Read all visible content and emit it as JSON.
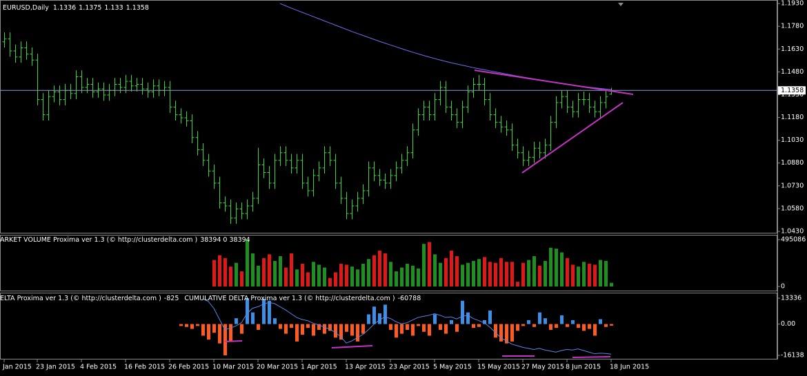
{
  "chart_data": [
    {
      "type": "ohlc",
      "title": "EURUSD,Daily",
      "color": "#33dd33",
      "categories": [
        "Jan 2015",
        null,
        null,
        null,
        null,
        null,
        "23 Jan 2015",
        null,
        null,
        null,
        null,
        null,
        null,
        null,
        "4 Feb 2015",
        null,
        null,
        null,
        null,
        null,
        null,
        null,
        "16 Feb 2015",
        null,
        null,
        null,
        null,
        null,
        null,
        null,
        "26 Feb 2015",
        null,
        null,
        null,
        null,
        null,
        null,
        null,
        "10 Mar 2015",
        null,
        null,
        null,
        null,
        null,
        null,
        null,
        "20 Mar 2015",
        null,
        null,
        null,
        null,
        null,
        null,
        null,
        "1 Apr 2015",
        null,
        null,
        null,
        null,
        null,
        null,
        null,
        "13 Apr 2015",
        null,
        null,
        null,
        null,
        null,
        null,
        null,
        "23 Apr 2015",
        null,
        null,
        null,
        null,
        null,
        null,
        null,
        "5 May 2015",
        null,
        null,
        null,
        null,
        null,
        null,
        null,
        "15 May 2015",
        null,
        null,
        null,
        null,
        null,
        null,
        null,
        "27 May 2015",
        null,
        null,
        null,
        null,
        null,
        null,
        null,
        "8 Jun 2015",
        null,
        null,
        null,
        null,
        null,
        null,
        null,
        "18 Jun 2015"
      ],
      "open": [
        1.168,
        1.17,
        1.162,
        1.158,
        1.164,
        1.16,
        1.156,
        1.13,
        1.12,
        1.132,
        1.135,
        1.13,
        1.136,
        1.134,
        1.145,
        1.138,
        1.14,
        1.135,
        1.137,
        1.133,
        1.136,
        1.14,
        1.138,
        1.142,
        1.139,
        1.14,
        1.137,
        1.135,
        1.139,
        1.136,
        1.138,
        1.125,
        1.12,
        1.118,
        1.116,
        1.105,
        1.097,
        1.09,
        1.083,
        1.075,
        1.062,
        1.06,
        1.052,
        1.058,
        1.055,
        1.06,
        1.065,
        1.087,
        1.082,
        1.075,
        1.09,
        1.095,
        1.09,
        1.085,
        1.09,
        1.075,
        1.07,
        1.08,
        1.085,
        1.095,
        1.09,
        1.075,
        1.065,
        1.055,
        1.06,
        1.065,
        1.07,
        1.085,
        1.08,
        1.077,
        1.075,
        1.08,
        1.085,
        1.09,
        1.095,
        1.11,
        1.12,
        1.125,
        1.12,
        1.13,
        1.138,
        1.125,
        1.12,
        1.115,
        1.125,
        1.135,
        1.14,
        1.14,
        1.13,
        1.12,
        1.115,
        1.112,
        1.11,
        1.1,
        1.095,
        1.09,
        1.092,
        1.098,
        1.095,
        1.1,
        1.115,
        1.128,
        1.132,
        1.125,
        1.122,
        1.13,
        1.13,
        1.125,
        1.122,
        1.128,
        1.1336
      ],
      "high": [
        1.174,
        1.174,
        1.166,
        1.168,
        1.168,
        1.164,
        1.16,
        1.134,
        1.136,
        1.139,
        1.139,
        1.14,
        1.14,
        1.149,
        1.149,
        1.144,
        1.144,
        1.141,
        1.141,
        1.14,
        1.144,
        1.144,
        1.146,
        1.146,
        1.144,
        1.144,
        1.141,
        1.143,
        1.143,
        1.142,
        1.142,
        1.129,
        1.124,
        1.122,
        1.12,
        1.109,
        1.101,
        1.094,
        1.087,
        1.079,
        1.066,
        1.064,
        1.062,
        1.062,
        1.064,
        1.069,
        1.098,
        1.091,
        1.086,
        1.094,
        1.099,
        1.099,
        1.094,
        1.094,
        1.094,
        1.079,
        1.084,
        1.089,
        1.099,
        1.099,
        1.094,
        1.079,
        1.069,
        1.064,
        1.069,
        1.074,
        1.089,
        1.089,
        1.084,
        1.081,
        1.084,
        1.089,
        1.094,
        1.099,
        1.114,
        1.124,
        1.129,
        1.129,
        1.134,
        1.142,
        1.142,
        1.129,
        1.124,
        1.129,
        1.139,
        1.144,
        1.146,
        1.144,
        1.134,
        1.124,
        1.119,
        1.116,
        1.114,
        1.104,
        1.099,
        1.096,
        1.102,
        1.102,
        1.104,
        1.119,
        1.132,
        1.136,
        1.136,
        1.129,
        1.134,
        1.135,
        1.134,
        1.129,
        1.132,
        1.136,
        1.1375
      ],
      "low": [
        1.164,
        1.158,
        1.154,
        1.154,
        1.156,
        1.152,
        1.126,
        1.116,
        1.116,
        1.128,
        1.126,
        1.126,
        1.13,
        1.13,
        1.134,
        1.134,
        1.131,
        1.131,
        1.129,
        1.129,
        1.132,
        1.134,
        1.134,
        1.135,
        1.135,
        1.133,
        1.131,
        1.131,
        1.132,
        1.132,
        1.121,
        1.116,
        1.114,
        1.112,
        1.101,
        1.093,
        1.086,
        1.079,
        1.071,
        1.058,
        1.056,
        1.048,
        1.048,
        1.051,
        1.051,
        1.056,
        1.061,
        1.078,
        1.071,
        1.071,
        1.086,
        1.086,
        1.081,
        1.081,
        1.071,
        1.066,
        1.066,
        1.076,
        1.081,
        1.086,
        1.071,
        1.061,
        1.051,
        1.051,
        1.056,
        1.061,
        1.066,
        1.076,
        1.073,
        1.071,
        1.071,
        1.076,
        1.081,
        1.086,
        1.091,
        1.106,
        1.116,
        1.116,
        1.116,
        1.126,
        1.121,
        1.116,
        1.111,
        1.111,
        1.121,
        1.131,
        1.136,
        1.126,
        1.116,
        1.111,
        1.108,
        1.106,
        1.096,
        1.091,
        1.086,
        1.086,
        1.088,
        1.091,
        1.091,
        1.096,
        1.111,
        1.124,
        1.121,
        1.118,
        1.118,
        1.126,
        1.121,
        1.118,
        1.118,
        1.124,
        1.133
      ],
      "close": [
        1.17,
        1.162,
        1.158,
        1.164,
        1.16,
        1.156,
        1.13,
        1.12,
        1.132,
        1.135,
        1.13,
        1.136,
        1.134,
        1.145,
        1.138,
        1.14,
        1.135,
        1.137,
        1.133,
        1.136,
        1.14,
        1.138,
        1.142,
        1.139,
        1.14,
        1.137,
        1.135,
        1.139,
        1.136,
        1.138,
        1.125,
        1.12,
        1.118,
        1.116,
        1.105,
        1.097,
        1.09,
        1.083,
        1.075,
        1.062,
        1.06,
        1.052,
        1.058,
        1.055,
        1.06,
        1.065,
        1.087,
        1.082,
        1.075,
        1.09,
        1.095,
        1.09,
        1.085,
        1.09,
        1.075,
        1.07,
        1.08,
        1.085,
        1.095,
        1.09,
        1.075,
        1.065,
        1.055,
        1.06,
        1.065,
        1.07,
        1.085,
        1.08,
        1.077,
        1.075,
        1.08,
        1.085,
        1.09,
        1.095,
        1.11,
        1.12,
        1.125,
        1.12,
        1.13,
        1.138,
        1.125,
        1.12,
        1.115,
        1.125,
        1.135,
        1.14,
        1.14,
        1.13,
        1.12,
        1.115,
        1.112,
        1.11,
        1.1,
        1.095,
        1.09,
        1.092,
        1.098,
        1.095,
        1.1,
        1.115,
        1.128,
        1.132,
        1.125,
        1.122,
        1.13,
        1.13,
        1.125,
        1.122,
        1.128,
        1.132,
        1.1358
      ],
      "overlays": [
        {
          "color": "#6f6ff0",
          "values": [
            null,
            null,
            null,
            null,
            null,
            null,
            null,
            null,
            null,
            null,
            null,
            null,
            null,
            null,
            null,
            null,
            null,
            null,
            null,
            null,
            null,
            null,
            null,
            null,
            null,
            null,
            null,
            null,
            null,
            null,
            null,
            null,
            null,
            null,
            null,
            null,
            null,
            null,
            null,
            null,
            null,
            null,
            null,
            null,
            null,
            null,
            null,
            null,
            null,
            null,
            1.193,
            1.1915,
            1.19,
            1.1886,
            1.1872,
            1.1858,
            1.1844,
            1.183,
            1.1816,
            1.1802,
            1.1788,
            1.1774,
            1.176,
            1.1746,
            1.1733,
            1.172,
            1.1707,
            1.1694,
            1.1681,
            1.1669,
            1.1657,
            1.1645,
            1.1633,
            1.1621,
            1.161,
            1.1599,
            1.1588,
            1.1578,
            1.1568,
            1.1558,
            1.1549,
            1.154,
            1.1532,
            1.1524,
            1.1516,
            1.1508,
            1.1501,
            1.1494,
            1.1487,
            1.148,
            1.1473,
            1.1466,
            1.1459,
            1.1452,
            1.1446,
            1.144,
            1.1434,
            1.1428,
            1.1422,
            1.1416,
            1.141,
            1.1404,
            1.1399,
            1.1394,
            1.1389,
            1.1384,
            1.1379,
            1.1375,
            1.1371,
            1.1367,
            1.1363
          ]
        }
      ],
      "ylim": [
        1.0421,
        1.1953
      ],
      "yticks": [
        {
          "value": 1.193,
          "label": "1.1930"
        },
        {
          "value": 1.178,
          "label": "1.1780"
        },
        {
          "value": 1.163,
          "label": "1.1630"
        },
        {
          "value": 1.148,
          "label": "1.1480"
        },
        {
          "value": 1.133,
          "label": "1.1330"
        },
        {
          "value": 1.118,
          "label": "1.1180"
        },
        {
          "value": 1.103,
          "label": "1.1030"
        },
        {
          "value": 1.088,
          "label": "1.0880"
        },
        {
          "value": 1.073,
          "label": "1.0730"
        },
        {
          "value": 1.058,
          "label": "1.0580"
        },
        {
          "value": 1.043,
          "label": "1.0430"
        }
      ],
      "last_price_line": true
    },
    {
      "type": "bar",
      "title": "ARKET VOLUME Proxima ver 1.3 (© http://clusterdelta.com )",
      "readout": "38394 0 38394",
      "up_color": "#1f8f1f",
      "down_color": "#e01818",
      "values": [
        null,
        null,
        null,
        null,
        null,
        null,
        null,
        null,
        null,
        null,
        null,
        null,
        null,
        null,
        null,
        null,
        null,
        null,
        null,
        null,
        null,
        null,
        null,
        null,
        null,
        null,
        null,
        null,
        null,
        null,
        null,
        null,
        null,
        null,
        null,
        null,
        null,
        null,
        280000,
        330000,
        300000,
        210000,
        250000,
        160000,
        495086,
        350000,
        220000,
        300000,
        340000,
        270000,
        320000,
        200000,
        350000,
        180000,
        240000,
        150000,
        260000,
        230000,
        200000,
        90000,
        150000,
        240000,
        230000,
        210000,
        180000,
        240000,
        290000,
        330000,
        380000,
        350000,
        260000,
        160000,
        200000,
        240000,
        220000,
        190000,
        450000,
        470000,
        340000,
        250000,
        300000,
        380000,
        320000,
        230000,
        250000,
        270000,
        290000,
        310000,
        260000,
        250000,
        300000,
        260000,
        260000,
        50000,
        250000,
        280000,
        320000,
        220000,
        270000,
        410000,
        400000,
        360000,
        300000,
        230000,
        210000,
        260000,
        240000,
        230000,
        280000,
        270000,
        38394
      ],
      "ylim": [
        0,
        495086
      ],
      "yticks": [
        495086,
        0
      ]
    },
    {
      "type": "bar",
      "title": "ELTA Proxima ver 1.3 (© http://clusterdelta.com )",
      "up_color": "#3d8fe6",
      "down_color": "#ff5a1f",
      "values": [
        null,
        null,
        null,
        null,
        null,
        null,
        null,
        null,
        null,
        null,
        null,
        null,
        null,
        null,
        null,
        null,
        null,
        null,
        null,
        null,
        null,
        null,
        null,
        null,
        null,
        null,
        null,
        null,
        null,
        null,
        null,
        null,
        -1000,
        -1500,
        -2500,
        -1000,
        -6000,
        -8000,
        -4500,
        -10000,
        -16138,
        -9000,
        3000,
        -5000,
        13336,
        6000,
        -3000,
        13000,
        12000,
        3000,
        -2500,
        -5000,
        -2000,
        -9000,
        -5500,
        -2000,
        -6000,
        -3000,
        -5000,
        -3500,
        -7000,
        -8000,
        -4000,
        -6000,
        -9000,
        -5000,
        5000,
        9000,
        5500,
        10000,
        -3000,
        -7000,
        -5000,
        -3000,
        -6000,
        -1000,
        -4000,
        -6000,
        5000,
        -3000,
        -5000,
        2000,
        -4000,
        12000,
        6000,
        -2000,
        -1500,
        2000,
        7000,
        -7000,
        -9000,
        -10000,
        -9000,
        -3500,
        -1000,
        2000,
        -1500,
        6000,
        3000,
        -3000,
        -2000,
        4500,
        -1500,
        2000,
        -2000,
        -3500,
        -2500,
        -6000,
        2500,
        -1500,
        -825
      ],
      "ylim": [
        -16138,
        13336
      ],
      "yticks": [
        13336,
        {
          "value": 0,
          "label": "0.00"
        },
        -16138
      ],
      "y2lim": [
        -63000,
        44000
      ],
      "series": [
        {
          "name": "CUMULATIVE DELTA Proxima ver 1.3 (© http://clusterdelta.com )",
          "color": "#5a86e8",
          "axis": "y2",
          "values": [
            null,
            null,
            null,
            null,
            null,
            null,
            null,
            null,
            null,
            null,
            null,
            null,
            null,
            null,
            null,
            null,
            null,
            null,
            null,
            null,
            null,
            null,
            null,
            null,
            null,
            null,
            null,
            null,
            null,
            null,
            null,
            null,
            null,
            null,
            null,
            null,
            43000,
            38000,
            25000,
            5000,
            -15000,
            -12000,
            -8000,
            -2000,
            15000,
            25000,
            28000,
            33000,
            36000,
            34000,
            28000,
            22000,
            15000,
            8000,
            4000,
            2000,
            -3000,
            -6000,
            -10000,
            -14000,
            -20000,
            -28000,
            -40000,
            -36000,
            -30000,
            -24000,
            -15000,
            -5000,
            3000,
            9000,
            6000,
            0,
            -4000,
            -2000,
            3000,
            8000,
            10000,
            12000,
            15000,
            12000,
            8000,
            9000,
            5000,
            10000,
            12000,
            6000,
            2000,
            -2000,
            -10000,
            -20000,
            -30000,
            -36000,
            -42000,
            -45000,
            -48000,
            -50000,
            -52000,
            -50000,
            -53000,
            -55000,
            -57000,
            -54000,
            -52000,
            -53000,
            -51000,
            -54000,
            -57000,
            -60000,
            -59000,
            -59500,
            -60788
          ]
        }
      ]
    }
  ]
}
